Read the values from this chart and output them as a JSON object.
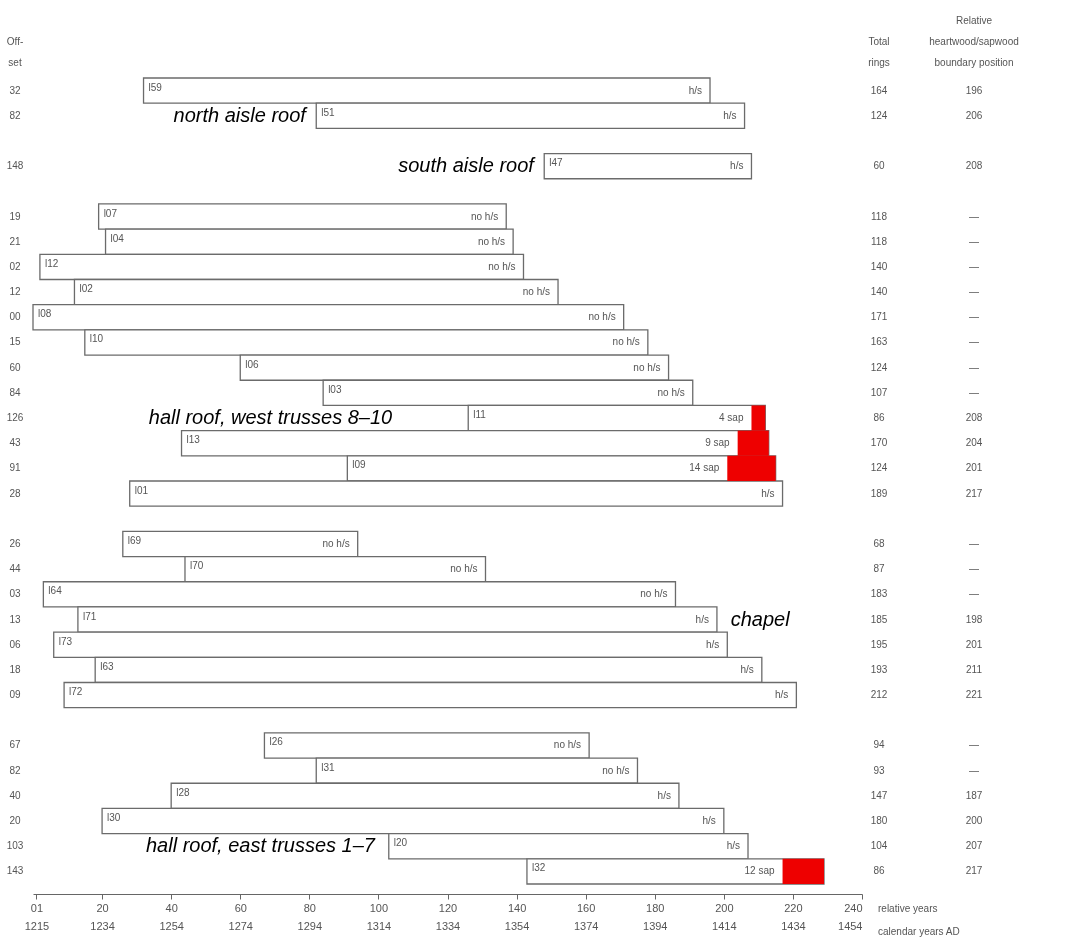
{
  "chart_data": {
    "type": "bar",
    "orientation": "horizontal",
    "ylabel": "Off-set",
    "xlabel": "relative years",
    "x2label": "calendar years AD",
    "data_labels": true,
    "categories": [
      "32",
      "82",
      null,
      "148",
      null,
      "19",
      "21",
      "02",
      "12",
      "00",
      "15",
      "60",
      "84",
      "126",
      "43",
      "91",
      "28",
      null,
      "26",
      "44",
      "03",
      "13",
      "06",
      "18",
      "09",
      null,
      "67",
      "82",
      "40",
      "20",
      "103",
      "143"
    ],
    "y2_categories": [
      "196",
      "206",
      null,
      "208",
      null,
      "—",
      "—",
      "—",
      "—",
      "—",
      "—",
      "—",
      "—",
      "208",
      "204",
      "201",
      "217",
      null,
      "—",
      "—",
      "—",
      "198",
      "201",
      "211",
      "221",
      null,
      "—",
      "—",
      "187",
      "200",
      "207",
      "217"
    ],
    "series": [
      {
        "color": "#ffffff",
        "base": [
          32,
          82,
          null,
          148,
          null,
          19,
          21,
          2,
          12,
          0,
          15,
          60,
          84,
          126,
          43,
          91,
          28,
          null,
          26,
          44,
          3,
          13,
          6,
          18,
          9,
          null,
          67,
          82,
          40,
          20,
          103,
          143
        ],
        "values": [
          164,
          124,
          null,
          60,
          null,
          118,
          118,
          140,
          140,
          171,
          163,
          124,
          107,
          86,
          170,
          124,
          189,
          null,
          68,
          87,
          183,
          185,
          195,
          193,
          212,
          null,
          94,
          93,
          147,
          180,
          104,
          86
        ]
      },
      {
        "color": "#ee0000",
        "base": [
          null,
          null,
          null,
          null,
          null,
          null,
          null,
          null,
          null,
          null,
          null,
          null,
          null,
          208,
          204,
          201,
          null,
          null,
          null,
          null,
          null,
          null,
          null,
          null,
          null,
          null,
          null,
          null,
          null,
          null,
          null,
          217
        ],
        "values": [
          null,
          null,
          null,
          null,
          null,
          null,
          null,
          null,
          null,
          null,
          null,
          null,
          null,
          4,
          9,
          14,
          null,
          null,
          null,
          null,
          null,
          null,
          null,
          null,
          null,
          null,
          null,
          null,
          null,
          null,
          null,
          12
        ],
        "value_labels": [
          null,
          null,
          null,
          null,
          null,
          null,
          null,
          null,
          null,
          null,
          null,
          null,
          null,
          "4 sap",
          "9 sap",
          "14 sap",
          null,
          null,
          null,
          null,
          null,
          null,
          null,
          null,
          null,
          null,
          null,
          null,
          null,
          null,
          null,
          "12 sap"
        ]
      }
    ],
    "xlim": [
      0,
      240
    ],
    "xticks": [
      {
        "value": 1,
        "label": "01"
      },
      20,
      40,
      60,
      80,
      100,
      120,
      140,
      160,
      180,
      200,
      220,
      240
    ],
    "x2lim": [
      1214,
      1454
    ],
    "x2ticks": [
      1215,
      1234,
      1254,
      1274,
      1294,
      1314,
      1334,
      1354,
      1374,
      1394,
      1414,
      1434,
      1454
    ],
    "annotations": [
      "Total rings",
      "Relative heartwood/sapwood boundary position",
      "north aisle roof",
      "south aisle roof",
      "hall roof, west trusses 8–10",
      "chapel",
      "hall roof, east trusses 1–7",
      "l31",
      "no h/s",
      {
        "text": "l59",
        "x": 32,
        "y": "32"
      },
      {
        "text": "l51",
        "x": 82,
        "y": "82"
      },
      {
        "text": "l47",
        "x": 148,
        "y": "148"
      },
      {
        "text": "l07",
        "x": 19,
        "y": "19"
      },
      {
        "text": "l04",
        "x": 21,
        "y": "21"
      },
      {
        "text": "l12",
        "x": 2,
        "y": "02"
      },
      {
        "text": "l02",
        "x": 12,
        "y": "12"
      },
      {
        "text": "l08",
        "x": 0,
        "y": "00"
      },
      {
        "text": "l10",
        "x": 15,
        "y": "15"
      },
      {
        "text": "l06",
        "x": 60,
        "y": "60"
      },
      {
        "text": "l03",
        "x": 84,
        "y": "84"
      },
      {
        "text": "l11",
        "x": 126,
        "y": "126"
      },
      {
        "text": "l13",
        "x": 43,
        "y": "43"
      },
      {
        "text": "l09",
        "x": 91,
        "y": "91"
      },
      {
        "text": "l01",
        "x": 28,
        "y": "28"
      },
      {
        "text": "l69",
        "x": 26,
        "y": "26"
      },
      {
        "text": "l70",
        "x": 44,
        "y": "44"
      },
      {
        "text": "l64",
        "x": 3,
        "y": "03"
      },
      {
        "text": "l71",
        "x": 13,
        "y": "13"
      },
      {
        "text": "l73",
        "x": 6,
        "y": "06"
      },
      {
        "text": "l63",
        "x": 18,
        "y": "18"
      },
      {
        "text": "l72",
        "x": 9,
        "y": "09"
      },
      {
        "text": "l26",
        "x": 67,
        "y": "67"
      },
      {
        "text": "l28",
        "x": 40,
        "y": "40"
      },
      {
        "text": "l30",
        "x": 20,
        "y": "20"
      },
      {
        "text": "l20",
        "x": 103,
        "y": "103"
      },
      {
        "text": "l32",
        "x": 143,
        "y": "143"
      },
      {
        "text": "h/s",
        "x": 196,
        "y": "32"
      },
      {
        "text": "h/s",
        "x": 206,
        "y": "82"
      },
      {
        "text": "h/s",
        "x": 208,
        "y": "148"
      },
      {
        "text": "no h/s",
        "x": 137,
        "y": "19"
      },
      {
        "text": "no h/s",
        "x": 139,
        "y": "21"
      },
      {
        "text": "no h/s",
        "x": 142,
        "y": "02"
      },
      {
        "text": "no h/s",
        "x": 152,
        "y": "12"
      },
      {
        "text": "no h/s",
        "x": 171,
        "y": "00"
      },
      {
        "text": "no h/s",
        "x": 178,
        "y": "15"
      },
      {
        "text": "no h/s",
        "x": 184,
        "y": "60"
      },
      {
        "text": "no h/s",
        "x": 191,
        "y": "84"
      },
      {
        "text": "h/s",
        "x": 217,
        "y": "28"
      },
      {
        "text": "no h/s",
        "x": 94,
        "y": "26"
      },
      {
        "text": "no h/s",
        "x": 131,
        "y": "44"
      },
      {
        "text": "no h/s",
        "x": 186,
        "y": "03"
      },
      {
        "text": "h/s",
        "x": 198,
        "y": "13"
      },
      {
        "text": "h/s",
        "x": 201,
        "y": "06"
      },
      {
        "text": "h/s",
        "x": 211,
        "y": "18"
      },
      {
        "text": "h/s",
        "x": 221,
        "y": "09"
      },
      {
        "text": "no h/s",
        "x": 161,
        "y": "67"
      },
      {
        "text": "h/s",
        "x": 187,
        "y": "40"
      },
      {
        "text": "h/s",
        "x": 200,
        "y": "20"
      },
      {
        "text": "h/s",
        "x": 207,
        "y": "103"
      }
    ]
  }
}
